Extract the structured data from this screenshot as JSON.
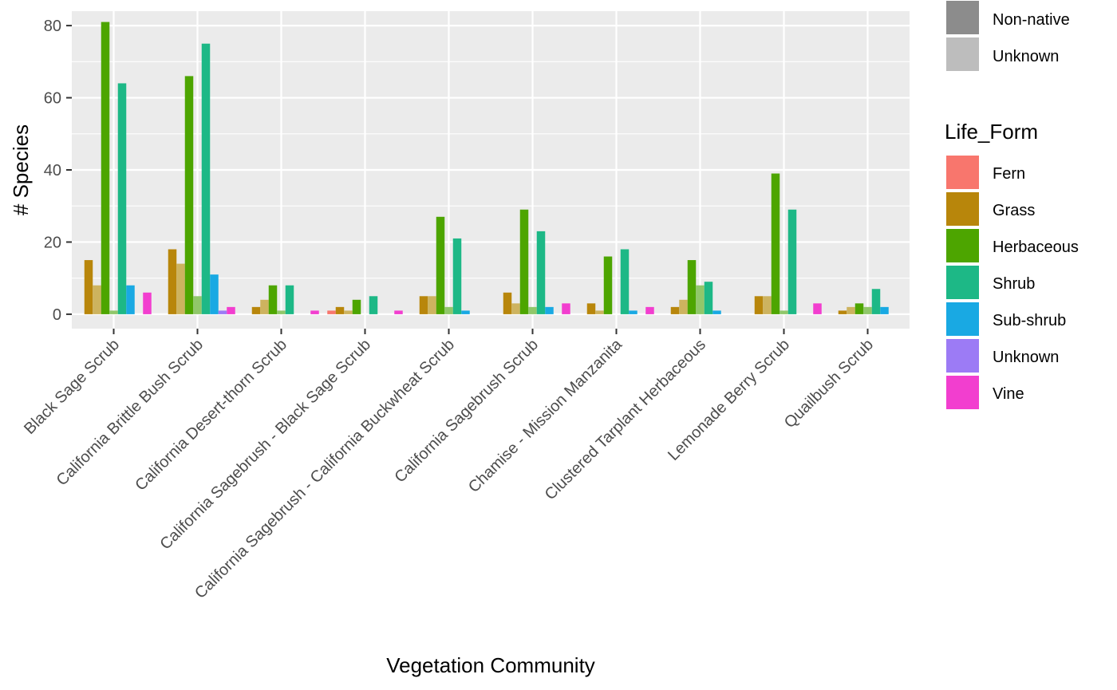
{
  "chart_data": {
    "type": "bar",
    "title": "",
    "xlabel": "Vegetation Community",
    "ylabel": "# Species",
    "ylim": [
      -4,
      84
    ],
    "yticks": [
      0,
      20,
      40,
      60,
      80
    ],
    "grid": true,
    "legend_position": "right",
    "categories": [
      "Black Sage Scrub",
      "California Brittle Bush Scrub",
      "California Desert-thorn Scrub",
      "California Sagebrush - Black Sage Scrub",
      "California Sagebrush - California Buckwheat Scrub",
      "California Sagebrush Scrub",
      "Chamise - Mission Manzanita",
      "Clustered Tarplant Herbaceous",
      "Lemonade Berry Scrub",
      "Quailbush Scrub"
    ],
    "series": [
      {
        "life_form": "Fern",
        "status": "Native",
        "color": "#F8766D",
        "values": [
          0,
          0,
          0,
          1,
          0,
          0,
          0,
          0,
          0,
          0
        ]
      },
      {
        "life_form": "Grass",
        "status": "Native",
        "color": "#B8860B",
        "values": [
          15,
          18,
          2,
          2,
          5,
          6,
          3,
          2,
          5,
          1
        ]
      },
      {
        "life_form": "Grass",
        "status": "Non-native",
        "color": "#CDB35F",
        "values": [
          8,
          14,
          4,
          1,
          5,
          3,
          1,
          4,
          5,
          2
        ]
      },
      {
        "life_form": "Herbaceous",
        "status": "Native",
        "color": "#4DA500",
        "values": [
          81,
          66,
          8,
          4,
          27,
          29,
          16,
          15,
          39,
          3
        ]
      },
      {
        "life_form": "Herbaceous",
        "status": "Non-native",
        "color": "#90C76A",
        "values": [
          1,
          5,
          1,
          0,
          2,
          2,
          0,
          8,
          1,
          2
        ]
      },
      {
        "life_form": "Shrub",
        "status": "Native",
        "color": "#1DB886",
        "values": [
          64,
          75,
          8,
          5,
          21,
          23,
          18,
          9,
          29,
          7
        ]
      },
      {
        "life_form": "Sub-shrub",
        "status": "Native",
        "color": "#19A9E3",
        "values": [
          8,
          11,
          0,
          0,
          1,
          2,
          1,
          1,
          0,
          2
        ]
      },
      {
        "life_form": "Unknown",
        "status": "Native",
        "color": "#9C7BF5",
        "values": [
          0,
          1,
          0,
          0,
          0,
          0,
          0,
          0,
          0,
          0
        ]
      },
      {
        "life_form": "Vine",
        "status": "Native",
        "color": "#F23ECF",
        "values": [
          6,
          2,
          1,
          1,
          0,
          3,
          2,
          0,
          3,
          0
        ]
      }
    ],
    "legend_status": {
      "items": [
        {
          "label": "Non-native",
          "color": "#8C8C8C"
        },
        {
          "label": "Unknown",
          "color": "#BDBDBD"
        }
      ]
    },
    "legend_life_form": {
      "title": "Life_Form",
      "items": [
        {
          "label": "Fern",
          "color": "#F8766D"
        },
        {
          "label": "Grass",
          "color": "#B8860B"
        },
        {
          "label": "Herbaceous",
          "color": "#4DA500"
        },
        {
          "label": "Shrub",
          "color": "#1DB886"
        },
        {
          "label": "Sub-shrub",
          "color": "#19A9E3"
        },
        {
          "label": "Unknown",
          "color": "#9C7BF5"
        },
        {
          "label": "Vine",
          "color": "#F23ECF"
        }
      ]
    }
  }
}
